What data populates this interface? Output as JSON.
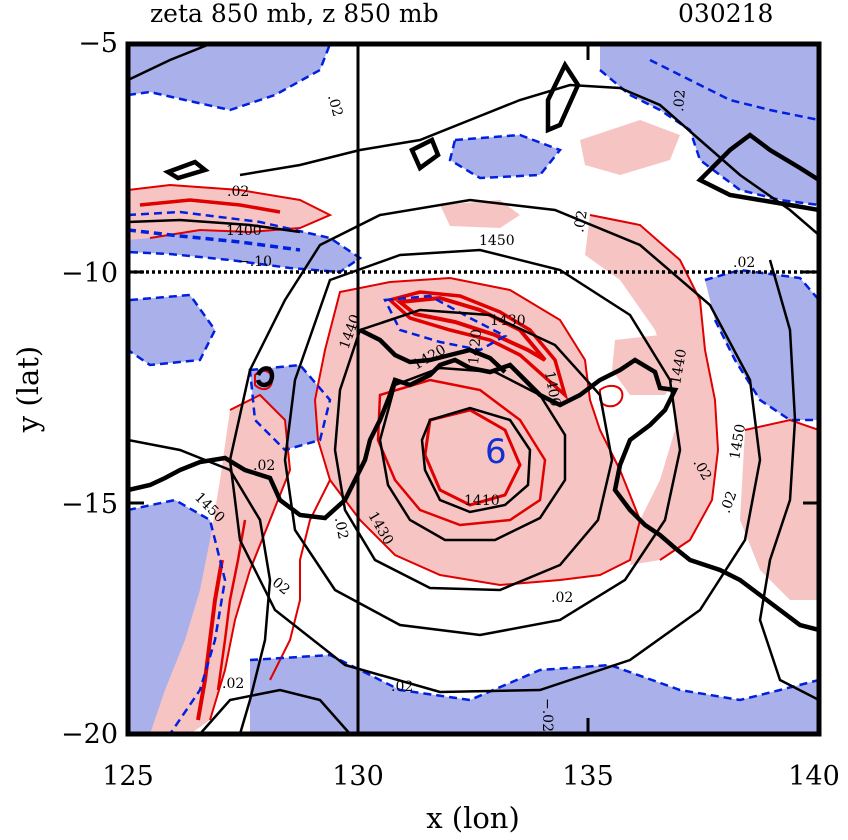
{
  "title": "zeta 850 mb, z 850 mb",
  "date": "030218",
  "xlabel": "x (lon)",
  "ylabel": "y (lat)",
  "x_ticks": [
    "125",
    "130",
    "135",
    "140"
  ],
  "y_ticks": [
    "−5",
    "−10",
    "−15",
    "−20"
  ],
  "cyclone_symbol": "6",
  "contour_labels": {
    "z_1400": "1400",
    "z_1450_top": "1450",
    "z_1450_left": "1450",
    "z_1450_right": "1450",
    "z_1410": "1410",
    "z_1430": "1430",
    "z_1430_upper": "1430",
    "z_1440": "1440",
    "z_1440_upper": "1440",
    "z_1420": "1420",
    "z_1400_centre": "1400",
    "z_1420_upper": "1420",
    "zeta_p02_a": ".02",
    "zeta_p02_b": ".02",
    "zeta_p02_c": ".02",
    "zeta_p02_d": ".02",
    "zeta_p02_e": ".02",
    "zeta_p02_f": ".02",
    "zeta_p02_g": ".02",
    "zeta_p02_h": ".02",
    "zeta_p02_i": ".02",
    "zeta_p02_j": ".02",
    "zeta_p02_k": ".02",
    "zeta_p02_l": ".02",
    "zeta_p02_m": ".02",
    "zeta_m10": "−.10",
    "zeta_m02": "−.02"
  },
  "colors": {
    "positive_fill": "#f7c4c4",
    "negative_fill": "#aab0ea",
    "positive_line": "#e00000",
    "negative_line": "#0020e0",
    "height_line": "#000000"
  },
  "map_data": {
    "type": "contour_map",
    "xlim": [
      125,
      140
    ],
    "ylim": [
      -20,
      -5
    ],
    "fields": [
      "850 mb relative vorticity (zeta)",
      "850 mb geopotential height (z)"
    ],
    "height_contours": [
      1400,
      1410,
      1420,
      1430,
      1440,
      1450
    ],
    "vorticity_contours": [
      -0.1,
      -0.02,
      0.02
    ],
    "reference_lines": {
      "lon": 130,
      "lat": -10
    },
    "cyclone_center": {
      "lon": 132.9,
      "lat": -13.8
    }
  }
}
